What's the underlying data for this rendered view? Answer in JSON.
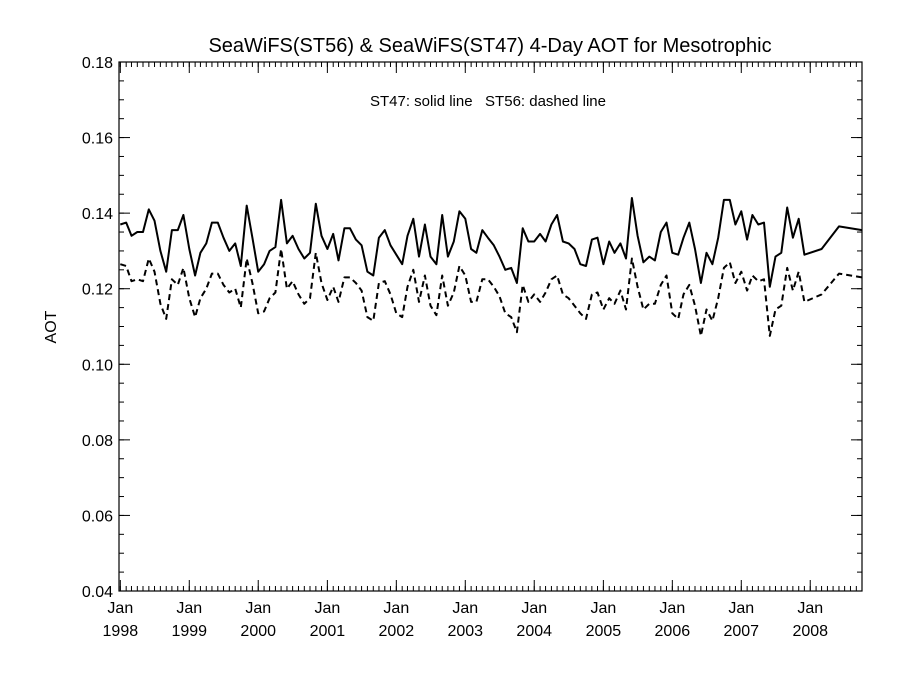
{
  "chart_data": {
    "type": "line",
    "title": "SeaWiFS(ST56) & SeaWiFS(ST47) 4-Day AOT for Mesotrophic",
    "ylabel": "AOT",
    "xlabel": "",
    "annotation": "ST47: solid line   ST56: dashed line",
    "xlim": [
      "1997-12-25",
      "2008-10-01"
    ],
    "ylim": [
      0.04,
      0.18
    ],
    "yticks": [
      "0.04",
      "0.06",
      "0.08",
      "0.10",
      "0.12",
      "0.14",
      "0.16",
      "0.18"
    ],
    "xticks": [
      {
        "date": "1998-01-01",
        "month": "Jan",
        "year": "1998"
      },
      {
        "date": "1999-01-01",
        "month": "Jan",
        "year": "1999"
      },
      {
        "date": "2000-01-01",
        "month": "Jan",
        "year": "2000"
      },
      {
        "date": "2001-01-01",
        "month": "Jan",
        "year": "2001"
      },
      {
        "date": "2002-01-01",
        "month": "Jan",
        "year": "2002"
      },
      {
        "date": "2003-01-01",
        "month": "Jan",
        "year": "2003"
      },
      {
        "date": "2004-01-01",
        "month": "Jan",
        "year": "2004"
      },
      {
        "date": "2005-01-01",
        "month": "Jan",
        "year": "2005"
      },
      {
        "date": "2006-01-01",
        "month": "Jan",
        "year": "2006"
      },
      {
        "date": "2007-01-01",
        "month": "Jan",
        "year": "2007"
      },
      {
        "date": "2008-01-01",
        "month": "Jan",
        "year": "2008"
      }
    ],
    "series": [
      {
        "name": "ST47",
        "style": "solid",
        "color": "#000000",
        "points": [
          [
            "1998-01-01",
            0.137
          ],
          [
            "1998-02-01",
            0.1375
          ],
          [
            "1998-03-01",
            0.134
          ],
          [
            "1998-04-01",
            0.135
          ],
          [
            "1998-05-01",
            0.135
          ],
          [
            "1998-06-01",
            0.141
          ],
          [
            "1998-07-01",
            0.138
          ],
          [
            "1998-08-01",
            0.13
          ],
          [
            "1998-09-01",
            0.1245
          ],
          [
            "1998-10-01",
            0.1355
          ],
          [
            "1998-11-01",
            0.1355
          ],
          [
            "1998-12-01",
            0.1395
          ],
          [
            "1999-01-01",
            0.1305
          ],
          [
            "1999-02-01",
            0.1235
          ],
          [
            "1999-03-01",
            0.1295
          ],
          [
            "1999-04-01",
            0.132
          ],
          [
            "1999-05-01",
            0.1375
          ],
          [
            "1999-06-01",
            0.1375
          ],
          [
            "1999-07-01",
            0.1335
          ],
          [
            "1999-08-01",
            0.13
          ],
          [
            "1999-09-01",
            0.132
          ],
          [
            "1999-10-01",
            0.126
          ],
          [
            "1999-11-01",
            0.142
          ],
          [
            "1999-12-01",
            0.1335
          ],
          [
            "2000-01-01",
            0.1245
          ],
          [
            "2000-02-01",
            0.1265
          ],
          [
            "2000-03-01",
            0.13
          ],
          [
            "2000-04-01",
            0.131
          ],
          [
            "2000-05-01",
            0.1435
          ],
          [
            "2000-06-01",
            0.132
          ],
          [
            "2000-07-01",
            0.134
          ],
          [
            "2000-08-01",
            0.1305
          ],
          [
            "2000-09-01",
            0.128
          ],
          [
            "2000-10-01",
            0.1295
          ],
          [
            "2000-11-01",
            0.1425
          ],
          [
            "2000-12-01",
            0.134
          ],
          [
            "2001-01-01",
            0.1305
          ],
          [
            "2001-02-01",
            0.1345
          ],
          [
            "2001-03-01",
            0.1275
          ],
          [
            "2001-04-01",
            0.136
          ],
          [
            "2001-05-01",
            0.136
          ],
          [
            "2001-06-01",
            0.133
          ],
          [
            "2001-07-01",
            0.1315
          ],
          [
            "2001-08-01",
            0.1245
          ],
          [
            "2001-09-01",
            0.1235
          ],
          [
            "2001-10-01",
            0.1335
          ],
          [
            "2001-11-01",
            0.1355
          ],
          [
            "2001-12-01",
            0.1315
          ],
          [
            "2002-01-01",
            0.129
          ],
          [
            "2002-02-01",
            0.1265
          ],
          [
            "2002-03-01",
            0.134
          ],
          [
            "2002-04-01",
            0.1385
          ],
          [
            "2002-05-01",
            0.1285
          ],
          [
            "2002-06-01",
            0.137
          ],
          [
            "2002-07-01",
            0.1285
          ],
          [
            "2002-08-01",
            0.1265
          ],
          [
            "2002-09-01",
            0.1395
          ],
          [
            "2002-10-01",
            0.1285
          ],
          [
            "2002-11-01",
            0.1325
          ],
          [
            "2002-12-01",
            0.1405
          ],
          [
            "2003-01-01",
            0.1385
          ],
          [
            "2003-02-01",
            0.1305
          ],
          [
            "2003-03-01",
            0.1295
          ],
          [
            "2003-04-01",
            0.1355
          ],
          [
            "2003-05-01",
            0.1335
          ],
          [
            "2003-06-01",
            0.1315
          ],
          [
            "2003-07-01",
            0.1285
          ],
          [
            "2003-08-01",
            0.125
          ],
          [
            "2003-09-01",
            0.1255
          ],
          [
            "2003-10-01",
            0.1215
          ],
          [
            "2003-11-01",
            0.136
          ],
          [
            "2003-12-01",
            0.1325
          ],
          [
            "2004-01-01",
            0.1325
          ],
          [
            "2004-02-01",
            0.1345
          ],
          [
            "2004-03-01",
            0.1325
          ],
          [
            "2004-04-01",
            0.137
          ],
          [
            "2004-05-01",
            0.1395
          ],
          [
            "2004-06-01",
            0.1325
          ],
          [
            "2004-07-01",
            0.132
          ],
          [
            "2004-08-01",
            0.1305
          ],
          [
            "2004-09-01",
            0.1265
          ],
          [
            "2004-10-01",
            0.126
          ],
          [
            "2004-11-01",
            0.133
          ],
          [
            "2004-12-01",
            0.1335
          ],
          [
            "2005-01-01",
            0.1265
          ],
          [
            "2005-02-01",
            0.1325
          ],
          [
            "2005-03-01",
            0.1295
          ],
          [
            "2005-04-01",
            0.132
          ],
          [
            "2005-05-01",
            0.128
          ],
          [
            "2005-06-01",
            0.144
          ],
          [
            "2005-07-01",
            0.134
          ],
          [
            "2005-08-01",
            0.127
          ],
          [
            "2005-09-01",
            0.1285
          ],
          [
            "2005-10-01",
            0.1275
          ],
          [
            "2005-11-01",
            0.135
          ],
          [
            "2005-12-01",
            0.1375
          ],
          [
            "2006-01-01",
            0.1295
          ],
          [
            "2006-02-01",
            0.129
          ],
          [
            "2006-03-01",
            0.1335
          ],
          [
            "2006-04-01",
            0.1375
          ],
          [
            "2006-05-01",
            0.1305
          ],
          [
            "2006-06-01",
            0.1215
          ],
          [
            "2006-07-01",
            0.1295
          ],
          [
            "2006-08-01",
            0.1265
          ],
          [
            "2006-09-01",
            0.1335
          ],
          [
            "2006-10-01",
            0.1435
          ],
          [
            "2006-11-01",
            0.1435
          ],
          [
            "2006-12-01",
            0.137
          ],
          [
            "2007-01-01",
            0.1405
          ],
          [
            "2007-02-01",
            0.133
          ],
          [
            "2007-03-01",
            0.1395
          ],
          [
            "2007-04-01",
            0.137
          ],
          [
            "2007-05-01",
            0.1375
          ],
          [
            "2007-06-01",
            0.1205
          ],
          [
            "2007-07-01",
            0.1285
          ],
          [
            "2007-08-01",
            0.1295
          ],
          [
            "2007-09-01",
            0.1415
          ],
          [
            "2007-10-01",
            0.1335
          ],
          [
            "2007-11-01",
            0.1385
          ],
          [
            "2007-12-01",
            0.129
          ],
          [
            "2008-03-01",
            0.1305
          ],
          [
            "2008-06-01",
            0.1365
          ],
          [
            "2008-10-01",
            0.1355
          ]
        ]
      },
      {
        "name": "ST56",
        "style": "dashed",
        "color": "#000000",
        "points": [
          [
            "1998-01-01",
            0.1265
          ],
          [
            "1998-02-01",
            0.126
          ],
          [
            "1998-03-01",
            0.122
          ],
          [
            "1998-04-01",
            0.1225
          ],
          [
            "1998-05-01",
            0.122
          ],
          [
            "1998-06-01",
            0.128
          ],
          [
            "1998-07-01",
            0.1245
          ],
          [
            "1998-08-01",
            0.116
          ],
          [
            "1998-09-01",
            0.112
          ],
          [
            "1998-10-01",
            0.1225
          ],
          [
            "1998-11-01",
            0.121
          ],
          [
            "1998-12-01",
            0.1255
          ],
          [
            "1999-01-01",
            0.1175
          ],
          [
            "1999-02-01",
            0.1125
          ],
          [
            "1999-03-01",
            0.1175
          ],
          [
            "1999-04-01",
            0.12
          ],
          [
            "1999-05-01",
            0.124
          ],
          [
            "1999-06-01",
            0.124
          ],
          [
            "1999-07-01",
            0.121
          ],
          [
            "1999-08-01",
            0.119
          ],
          [
            "1999-09-01",
            0.12
          ],
          [
            "1999-10-01",
            0.115
          ],
          [
            "1999-11-01",
            0.128
          ],
          [
            "1999-12-01",
            0.1215
          ],
          [
            "2000-01-01",
            0.1135
          ],
          [
            "2000-02-01",
            0.114
          ],
          [
            "2000-03-01",
            0.1175
          ],
          [
            "2000-04-01",
            0.119
          ],
          [
            "2000-05-01",
            0.1305
          ],
          [
            "2000-06-01",
            0.12
          ],
          [
            "2000-07-01",
            0.122
          ],
          [
            "2000-08-01",
            0.1185
          ],
          [
            "2000-09-01",
            0.116
          ],
          [
            "2000-10-01",
            0.1175
          ],
          [
            "2000-11-01",
            0.1295
          ],
          [
            "2000-12-01",
            0.1215
          ],
          [
            "2001-01-01",
            0.117
          ],
          [
            "2001-02-01",
            0.1205
          ],
          [
            "2001-03-01",
            0.1165
          ],
          [
            "2001-04-01",
            0.123
          ],
          [
            "2001-05-01",
            0.123
          ],
          [
            "2001-06-01",
            0.1215
          ],
          [
            "2001-07-01",
            0.1195
          ],
          [
            "2001-08-01",
            0.1125
          ],
          [
            "2001-09-01",
            0.1115
          ],
          [
            "2001-10-01",
            0.1215
          ],
          [
            "2001-11-01",
            0.122
          ],
          [
            "2001-12-01",
            0.1185
          ],
          [
            "2002-01-01",
            0.1135
          ],
          [
            "2002-02-01",
            0.1125
          ],
          [
            "2002-03-01",
            0.1205
          ],
          [
            "2002-04-01",
            0.125
          ],
          [
            "2002-05-01",
            0.1165
          ],
          [
            "2002-06-01",
            0.1235
          ],
          [
            "2002-07-01",
            0.1155
          ],
          [
            "2002-08-01",
            0.113
          ],
          [
            "2002-09-01",
            0.1235
          ],
          [
            "2002-10-01",
            0.1155
          ],
          [
            "2002-11-01",
            0.119
          ],
          [
            "2002-12-01",
            0.126
          ],
          [
            "2003-01-01",
            0.1235
          ],
          [
            "2003-02-01",
            0.1165
          ],
          [
            "2003-03-01",
            0.1165
          ],
          [
            "2003-04-01",
            0.1225
          ],
          [
            "2003-05-01",
            0.1225
          ],
          [
            "2003-06-01",
            0.1205
          ],
          [
            "2003-07-01",
            0.118
          ],
          [
            "2003-08-01",
            0.1135
          ],
          [
            "2003-09-01",
            0.1125
          ],
          [
            "2003-10-01",
            0.1085
          ],
          [
            "2003-11-01",
            0.121
          ],
          [
            "2003-12-01",
            0.1165
          ],
          [
            "2004-01-01",
            0.1185
          ],
          [
            "2004-02-01",
            0.1165
          ],
          [
            "2004-03-01",
            0.119
          ],
          [
            "2004-04-01",
            0.1225
          ],
          [
            "2004-05-01",
            0.1235
          ],
          [
            "2004-06-01",
            0.1185
          ],
          [
            "2004-07-01",
            0.1175
          ],
          [
            "2004-08-01",
            0.1155
          ],
          [
            "2004-09-01",
            0.1135
          ],
          [
            "2004-10-01",
            0.112
          ],
          [
            "2004-11-01",
            0.1185
          ],
          [
            "2004-12-01",
            0.119
          ],
          [
            "2005-01-01",
            0.1145
          ],
          [
            "2005-02-01",
            0.1175
          ],
          [
            "2005-03-01",
            0.116
          ],
          [
            "2005-04-01",
            0.1195
          ],
          [
            "2005-05-01",
            0.1145
          ],
          [
            "2005-06-01",
            0.128
          ],
          [
            "2005-07-01",
            0.1205
          ],
          [
            "2005-08-01",
            0.1145
          ],
          [
            "2005-09-01",
            0.116
          ],
          [
            "2005-10-01",
            0.116
          ],
          [
            "2005-11-01",
            0.121
          ],
          [
            "2005-12-01",
            0.1235
          ],
          [
            "2006-01-01",
            0.1135
          ],
          [
            "2006-02-01",
            0.112
          ],
          [
            "2006-03-01",
            0.1185
          ],
          [
            "2006-04-01",
            0.121
          ],
          [
            "2006-05-01",
            0.1155
          ],
          [
            "2006-06-01",
            0.1075
          ],
          [
            "2006-07-01",
            0.1145
          ],
          [
            "2006-08-01",
            0.1115
          ],
          [
            "2006-09-01",
            0.1175
          ],
          [
            "2006-10-01",
            0.1255
          ],
          [
            "2006-11-01",
            0.127
          ],
          [
            "2006-12-01",
            0.1215
          ],
          [
            "2007-01-01",
            0.1245
          ],
          [
            "2007-02-01",
            0.1195
          ],
          [
            "2007-03-01",
            0.1235
          ],
          [
            "2007-04-01",
            0.122
          ],
          [
            "2007-05-01",
            0.1225
          ],
          [
            "2007-06-01",
            0.1075
          ],
          [
            "2007-07-01",
            0.1145
          ],
          [
            "2007-08-01",
            0.1155
          ],
          [
            "2007-09-01",
            0.1255
          ],
          [
            "2007-10-01",
            0.1195
          ],
          [
            "2007-11-01",
            0.1245
          ],
          [
            "2007-12-01",
            0.1165
          ],
          [
            "2008-03-01",
            0.1185
          ],
          [
            "2008-06-01",
            0.124
          ],
          [
            "2008-10-01",
            0.123
          ]
        ]
      }
    ]
  }
}
